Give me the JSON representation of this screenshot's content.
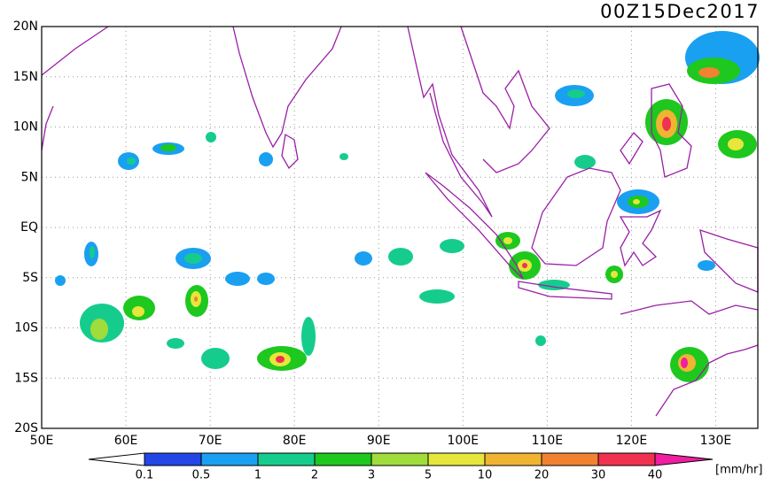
{
  "title": "00Z15Dec2017",
  "lat_labels": [
    "20N",
    "15N",
    "10N",
    "5N",
    "EQ",
    "5S",
    "10S",
    "15S",
    "20S"
  ],
  "lon_labels": [
    "50E",
    "60E",
    "70E",
    "80E",
    "90E",
    "100E",
    "110E",
    "120E",
    "130E"
  ],
  "colorbar": {
    "labels": [
      "0.1",
      "0.5",
      "1",
      "2",
      "3",
      "5",
      "10",
      "20",
      "30",
      "40"
    ],
    "colors": [
      "#ffffff",
      "#2346e6",
      "#1aa0f0",
      "#16cc8c",
      "#1ec81e",
      "#a0dc3c",
      "#e6e63c",
      "#f0b432",
      "#f08232",
      "#f03250",
      "#f01ea0"
    ],
    "unit": "[mm/hr]"
  }
}
